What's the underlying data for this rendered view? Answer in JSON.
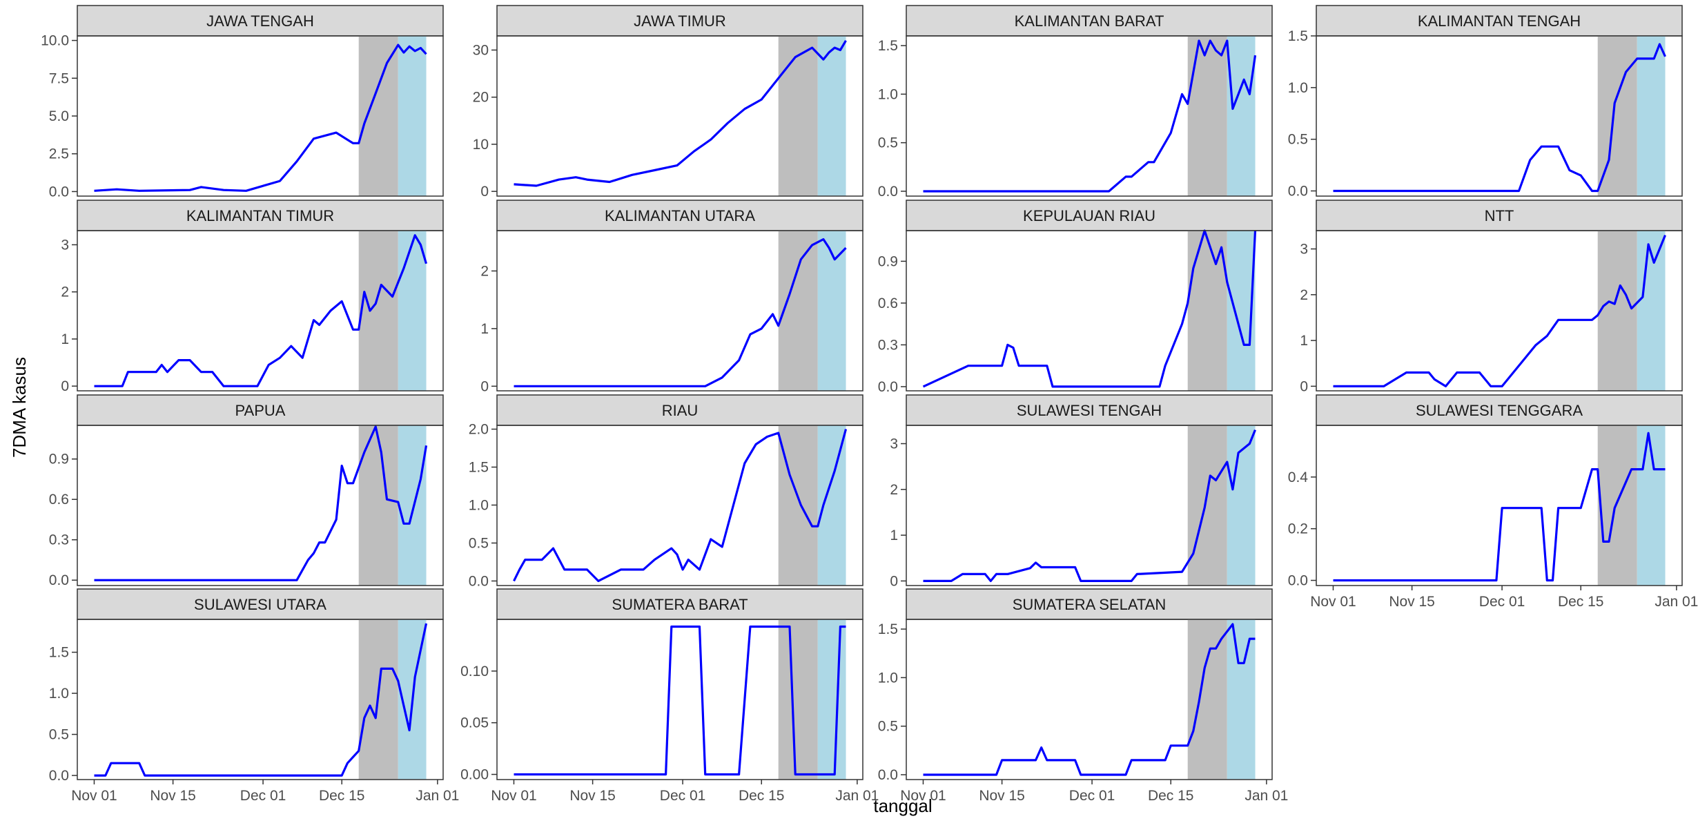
{
  "chart_data": {
    "type": "line",
    "layout": "facet-grid 4 columns x 4 rows, free y scales, shared x axis",
    "xlabel": "tanggal",
    "ylabel": "7DMA kasus",
    "x_tick_labels": [
      "Nov 01",
      "Nov 15",
      "Dec 01",
      "Dec 15",
      "Jan 01"
    ],
    "x_tick_dates": [
      "2020-11-01",
      "2020-11-15",
      "2020-12-01",
      "2020-12-15",
      "2021-01-01"
    ],
    "x_range": [
      "2020-10-29",
      "2021-01-02"
    ],
    "shaded_periods": [
      {
        "fill": "#bebebe",
        "start": "2020-12-18",
        "end": "2020-12-25"
      },
      {
        "fill": "#add8e6",
        "start": "2020-12-25",
        "end": "2020-12-30"
      }
    ],
    "line_color": "#0000ff",
    "strip_fill": "#d9d9d9",
    "grid": false,
    "panels": [
      {
        "title": "JAWA TENGAH",
        "ylim": [
          -0.3,
          10.3
        ],
        "yticks": [
          0,
          2.5,
          5,
          7.5,
          10
        ],
        "ytick_labels": [
          "0.0",
          "2.5",
          "5.0",
          "7.5",
          "10.0"
        ],
        "x": [
          "2020-11-01",
          "2020-11-05",
          "2020-11-09",
          "2020-11-18",
          "2020-11-20",
          "2020-11-24",
          "2020-11-28",
          "2020-12-04",
          "2020-12-07",
          "2020-12-10",
          "2020-12-14",
          "2020-12-17",
          "2020-12-18",
          "2020-12-19",
          "2020-12-21",
          "2020-12-23",
          "2020-12-25",
          "2020-12-26",
          "2020-12-27",
          "2020-12-28",
          "2020-12-29",
          "2020-12-30"
        ],
        "y": [
          0.05,
          0.15,
          0.05,
          0.1,
          0.3,
          0.1,
          0.05,
          0.7,
          2.0,
          3.5,
          3.9,
          3.2,
          3.2,
          4.5,
          6.5,
          8.5,
          9.7,
          9.2,
          9.6,
          9.3,
          9.5,
          9.1
        ]
      },
      {
        "title": "JAWA TIMUR",
        "ylim": [
          -1,
          33
        ],
        "yticks": [
          0,
          10,
          20,
          30
        ],
        "ytick_labels": [
          "0",
          "10",
          "20",
          "30"
        ],
        "x": [
          "2020-11-01",
          "2020-11-05",
          "2020-11-09",
          "2020-11-12",
          "2020-11-14",
          "2020-11-18",
          "2020-11-22",
          "2020-11-26",
          "2020-11-30",
          "2020-12-03",
          "2020-12-06",
          "2020-12-09",
          "2020-12-12",
          "2020-12-15",
          "2020-12-18",
          "2020-12-21",
          "2020-12-24",
          "2020-12-26",
          "2020-12-27",
          "2020-12-28",
          "2020-12-29",
          "2020-12-30"
        ],
        "y": [
          1.5,
          1.2,
          2.5,
          3.0,
          2.5,
          2.0,
          3.5,
          4.5,
          5.5,
          8.5,
          11.0,
          14.5,
          17.5,
          19.5,
          24.0,
          28.5,
          30.5,
          28.0,
          29.5,
          30.5,
          30.0,
          32.0
        ]
      },
      {
        "title": "KALIMANTAN BARAT",
        "ylim": [
          -0.05,
          1.6
        ],
        "yticks": [
          0,
          0.5,
          1,
          1.5
        ],
        "ytick_labels": [
          "0.0",
          "0.5",
          "1.0",
          "1.5"
        ],
        "x": [
          "2020-11-01",
          "2020-12-04",
          "2020-12-07",
          "2020-12-08",
          "2020-12-11",
          "2020-12-12",
          "2020-12-15",
          "2020-12-17",
          "2020-12-18",
          "2020-12-20",
          "2020-12-21",
          "2020-12-22",
          "2020-12-23",
          "2020-12-24",
          "2020-12-25",
          "2020-12-26",
          "2020-12-27",
          "2020-12-28",
          "2020-12-29",
          "2020-12-30"
        ],
        "y": [
          0,
          0,
          0.15,
          0.15,
          0.3,
          0.3,
          0.6,
          1.0,
          0.9,
          1.55,
          1.4,
          1.55,
          1.45,
          1.4,
          1.55,
          0.85,
          1.0,
          1.15,
          1.0,
          1.4
        ]
      },
      {
        "title": "KALIMANTAN TENGAH",
        "ylim": [
          -0.05,
          1.5
        ],
        "yticks": [
          0,
          0.5,
          1,
          1.5
        ],
        "ytick_labels": [
          "0.0",
          "0.5",
          "1.0",
          "1.5"
        ],
        "x": [
          "2020-11-01",
          "2020-12-04",
          "2020-12-06",
          "2020-12-08",
          "2020-12-11",
          "2020-12-13",
          "2020-12-15",
          "2020-12-17",
          "2020-12-18",
          "2020-12-20",
          "2020-12-21",
          "2020-12-23",
          "2020-12-25",
          "2020-12-27",
          "2020-12-28",
          "2020-12-29",
          "2020-12-30"
        ],
        "y": [
          0,
          0,
          0.3,
          0.43,
          0.43,
          0.2,
          0.15,
          0,
          0,
          0.3,
          0.85,
          1.15,
          1.28,
          1.28,
          1.28,
          1.42,
          1.3
        ]
      },
      {
        "title": "KALIMANTAN TIMUR",
        "ylim": [
          -0.1,
          3.3
        ],
        "yticks": [
          0,
          1,
          2,
          3
        ],
        "ytick_labels": [
          "0",
          "1",
          "2",
          "3"
        ],
        "x": [
          "2020-11-01",
          "2020-11-06",
          "2020-11-07",
          "2020-11-12",
          "2020-11-13",
          "2020-11-14",
          "2020-11-16",
          "2020-11-18",
          "2020-11-20",
          "2020-11-22",
          "2020-11-24",
          "2020-11-30",
          "2020-12-02",
          "2020-12-04",
          "2020-12-06",
          "2020-12-08",
          "2020-12-10",
          "2020-12-11",
          "2020-12-13",
          "2020-12-15",
          "2020-12-17",
          "2020-12-18",
          "2020-12-19",
          "2020-12-20",
          "2020-12-21",
          "2020-12-22",
          "2020-12-24",
          "2020-12-26",
          "2020-12-28",
          "2020-12-29",
          "2020-12-30"
        ],
        "y": [
          0,
          0,
          0.3,
          0.3,
          0.45,
          0.3,
          0.55,
          0.55,
          0.3,
          0.3,
          0,
          0,
          0.45,
          0.6,
          0.85,
          0.6,
          1.4,
          1.3,
          1.6,
          1.8,
          1.2,
          1.2,
          2.0,
          1.6,
          1.75,
          2.15,
          1.9,
          2.5,
          3.2,
          3.0,
          2.6
        ]
      },
      {
        "title": "KALIMANTAN UTARA",
        "ylim": [
          -0.08,
          2.7
        ],
        "yticks": [
          0,
          1,
          2
        ],
        "ytick_labels": [
          "0",
          "1",
          "2"
        ],
        "x": [
          "2020-11-01",
          "2020-12-05",
          "2020-12-08",
          "2020-12-11",
          "2020-12-13",
          "2020-12-15",
          "2020-12-17",
          "2020-12-18",
          "2020-12-20",
          "2020-12-22",
          "2020-12-24",
          "2020-12-26",
          "2020-12-27",
          "2020-12-28",
          "2020-12-29",
          "2020-12-30"
        ],
        "y": [
          0,
          0,
          0.15,
          0.45,
          0.9,
          1.0,
          1.25,
          1.05,
          1.6,
          2.2,
          2.45,
          2.55,
          2.4,
          2.2,
          2.3,
          2.4
        ]
      },
      {
        "title": "KEPULAUAN RIAU",
        "ylim": [
          -0.03,
          1.12
        ],
        "yticks": [
          0,
          0.3,
          0.6,
          0.9
        ],
        "ytick_labels": [
          "0.0",
          "0.3",
          "0.6",
          "0.9"
        ],
        "x": [
          "2020-11-01",
          "2020-11-09",
          "2020-11-15",
          "2020-11-16",
          "2020-11-17",
          "2020-11-18",
          "2020-11-23",
          "2020-11-24",
          "2020-12-13",
          "2020-12-14",
          "2020-12-17",
          "2020-12-18",
          "2020-12-19",
          "2020-12-21",
          "2020-12-23",
          "2020-12-24",
          "2020-12-25",
          "2020-12-27",
          "2020-12-28",
          "2020-12-29",
          "2020-12-30"
        ],
        "y": [
          0,
          0.15,
          0.15,
          0.3,
          0.28,
          0.15,
          0.15,
          0,
          0,
          0.15,
          0.45,
          0.6,
          0.85,
          1.12,
          0.88,
          1.0,
          0.75,
          0.45,
          0.3,
          0.3,
          1.12
        ]
      },
      {
        "title": "NTT",
        "ylim": [
          -0.1,
          3.4
        ],
        "yticks": [
          0,
          1,
          2,
          3
        ],
        "ytick_labels": [
          "0",
          "1",
          "2",
          "3"
        ],
        "x": [
          "2020-11-01",
          "2020-11-10",
          "2020-11-12",
          "2020-11-14",
          "2020-11-18",
          "2020-11-19",
          "2020-11-21",
          "2020-11-23",
          "2020-11-27",
          "2020-11-29",
          "2020-12-01",
          "2020-12-03",
          "2020-12-05",
          "2020-12-07",
          "2020-12-09",
          "2020-12-11",
          "2020-12-14",
          "2020-12-15",
          "2020-12-17",
          "2020-12-18",
          "2020-12-19",
          "2020-12-20",
          "2020-12-21",
          "2020-12-22",
          "2020-12-23",
          "2020-12-24",
          "2020-12-26",
          "2020-12-27",
          "2020-12-28",
          "2020-12-29",
          "2020-12-30"
        ],
        "y": [
          0,
          0,
          0.15,
          0.3,
          0.3,
          0.15,
          0,
          0.3,
          0.3,
          0,
          0,
          0.3,
          0.6,
          0.9,
          1.1,
          1.45,
          1.45,
          1.45,
          1.45,
          1.55,
          1.75,
          1.85,
          1.8,
          2.2,
          2.0,
          1.7,
          1.95,
          3.1,
          2.7,
          3.0,
          3.3
        ]
      },
      {
        "title": "PAPUA",
        "ylim": [
          -0.04,
          1.15
        ],
        "yticks": [
          0,
          0.3,
          0.6,
          0.9
        ],
        "ytick_labels": [
          "0.0",
          "0.3",
          "0.6",
          "0.9"
        ],
        "x": [
          "2020-11-01",
          "2020-12-07",
          "2020-12-09",
          "2020-12-10",
          "2020-12-11",
          "2020-12-12",
          "2020-12-14",
          "2020-12-15",
          "2020-12-16",
          "2020-12-17",
          "2020-12-19",
          "2020-12-21",
          "2020-12-22",
          "2020-12-23",
          "2020-12-25",
          "2020-12-26",
          "2020-12-27",
          "2020-12-29",
          "2020-12-30"
        ],
        "y": [
          0,
          0,
          0.15,
          0.2,
          0.28,
          0.28,
          0.45,
          0.85,
          0.72,
          0.72,
          0.95,
          1.14,
          0.95,
          0.6,
          0.58,
          0.42,
          0.42,
          0.75,
          1.0
        ]
      },
      {
        "title": "RIAU",
        "ylim": [
          -0.06,
          2.05
        ],
        "yticks": [
          0,
          0.5,
          1,
          1.5,
          2
        ],
        "ytick_labels": [
          "0.0",
          "0.5",
          "1.0",
          "1.5",
          "2.0"
        ],
        "x": [
          "2020-11-01",
          "2020-11-02",
          "2020-11-03",
          "2020-11-06",
          "2020-11-08",
          "2020-11-10",
          "2020-11-14",
          "2020-11-16",
          "2020-11-20",
          "2020-11-24",
          "2020-11-26",
          "2020-11-29",
          "2020-11-30",
          "2020-12-01",
          "2020-12-02",
          "2020-12-04",
          "2020-12-06",
          "2020-12-08",
          "2020-12-10",
          "2020-12-12",
          "2020-12-14",
          "2020-12-16",
          "2020-12-18",
          "2020-12-20",
          "2020-12-22",
          "2020-12-24",
          "2020-12-25",
          "2020-12-26",
          "2020-12-28",
          "2020-12-30"
        ],
        "y": [
          0,
          0.15,
          0.28,
          0.28,
          0.43,
          0.15,
          0.15,
          0.0,
          0.15,
          0.15,
          0.28,
          0.43,
          0.35,
          0.15,
          0.28,
          0.15,
          0.55,
          0.45,
          1.0,
          1.55,
          1.8,
          1.9,
          1.95,
          1.4,
          1.0,
          0.72,
          0.72,
          1.0,
          1.45,
          2.0
        ]
      },
      {
        "title": "SULAWESI TENGAH",
        "ylim": [
          -0.1,
          3.4
        ],
        "yticks": [
          0,
          1,
          2,
          3
        ],
        "ytick_labels": [
          "0",
          "1",
          "2",
          "3"
        ],
        "x": [
          "2020-11-01",
          "2020-11-06",
          "2020-11-08",
          "2020-11-12",
          "2020-11-13",
          "2020-11-14",
          "2020-11-16",
          "2020-11-20",
          "2020-11-21",
          "2020-11-22",
          "2020-11-28",
          "2020-11-29",
          "2020-12-08",
          "2020-12-09",
          "2020-12-17",
          "2020-12-19",
          "2020-12-21",
          "2020-12-22",
          "2020-12-23",
          "2020-12-25",
          "2020-12-26",
          "2020-12-27",
          "2020-12-29",
          "2020-12-30"
        ],
        "y": [
          0,
          0,
          0.15,
          0.15,
          0.0,
          0.15,
          0.15,
          0.28,
          0.4,
          0.3,
          0.3,
          0.0,
          0.0,
          0.15,
          0.2,
          0.6,
          1.6,
          2.3,
          2.2,
          2.6,
          2.0,
          2.8,
          3.0,
          3.3
        ]
      },
      {
        "title": "SULAWESI TENGGARA",
        "ylim": [
          -0.02,
          0.6
        ],
        "yticks": [
          0,
          0.2,
          0.4
        ],
        "ytick_labels": [
          "0.0",
          "0.2",
          "0.4"
        ],
        "x": [
          "2020-11-01",
          "2020-11-30",
          "2020-12-01",
          "2020-12-08",
          "2020-12-09",
          "2020-12-10",
          "2020-12-11",
          "2020-12-15",
          "2020-12-17",
          "2020-12-18",
          "2020-12-19",
          "2020-12-20",
          "2020-12-21",
          "2020-12-24",
          "2020-12-26",
          "2020-12-27",
          "2020-12-28",
          "2020-12-30"
        ],
        "y": [
          0,
          0,
          0.28,
          0.28,
          0,
          0,
          0.28,
          0.28,
          0.43,
          0.43,
          0.15,
          0.15,
          0.28,
          0.43,
          0.43,
          0.57,
          0.43,
          0.43
        ]
      },
      {
        "title": "SULAWESI UTARA",
        "ylim": [
          -0.05,
          1.9
        ],
        "yticks": [
          0,
          0.5,
          1,
          1.5
        ],
        "ytick_labels": [
          "0.0",
          "0.5",
          "1.0",
          "1.5"
        ],
        "x": [
          "2020-11-01",
          "2020-11-03",
          "2020-11-04",
          "2020-11-09",
          "2020-11-10",
          "2020-12-15",
          "2020-12-16",
          "2020-12-18",
          "2020-12-19",
          "2020-12-20",
          "2020-12-21",
          "2020-12-22",
          "2020-12-24",
          "2020-12-25",
          "2020-12-26",
          "2020-12-27",
          "2020-12-28",
          "2020-12-30"
        ],
        "y": [
          0,
          0,
          0.15,
          0.15,
          0,
          0,
          0.15,
          0.3,
          0.7,
          0.85,
          0.7,
          1.3,
          1.3,
          1.15,
          0.85,
          0.55,
          1.2,
          1.85
        ]
      },
      {
        "title": "SUMATERA BARAT",
        "ylim": [
          -0.005,
          0.15
        ],
        "yticks": [
          0,
          0.05,
          0.1
        ],
        "ytick_labels": [
          "0.00",
          "0.05",
          "0.10"
        ],
        "x": [
          "2020-11-01",
          "2020-11-28",
          "2020-11-29",
          "2020-12-04",
          "2020-12-05",
          "2020-12-11",
          "2020-12-13",
          "2020-12-20",
          "2020-12-21",
          "2020-12-28",
          "2020-12-29",
          "2020-12-30"
        ],
        "y": [
          0,
          0,
          0.143,
          0.143,
          0,
          0,
          0.143,
          0.143,
          0,
          0,
          0.143,
          0.143
        ]
      },
      {
        "title": "SUMATERA SELATAN",
        "ylim": [
          -0.05,
          1.6
        ],
        "yticks": [
          0,
          0.5,
          1,
          1.5
        ],
        "ytick_labels": [
          "0.0",
          "0.5",
          "1.0",
          "1.5"
        ],
        "x": [
          "2020-11-01",
          "2020-11-14",
          "2020-11-15",
          "2020-11-21",
          "2020-11-22",
          "2020-11-23",
          "2020-11-28",
          "2020-11-29",
          "2020-12-07",
          "2020-12-08",
          "2020-12-14",
          "2020-12-15",
          "2020-12-18",
          "2020-12-19",
          "2020-12-20",
          "2020-12-21",
          "2020-12-22",
          "2020-12-23",
          "2020-12-24",
          "2020-12-26",
          "2020-12-27",
          "2020-12-28",
          "2020-12-29",
          "2020-12-30"
        ],
        "y": [
          0,
          0,
          0.15,
          0.15,
          0.28,
          0.15,
          0.15,
          0.0,
          0.0,
          0.15,
          0.15,
          0.3,
          0.3,
          0.45,
          0.75,
          1.1,
          1.3,
          1.3,
          1.4,
          1.55,
          1.15,
          1.15,
          1.4,
          1.4
        ]
      }
    ]
  }
}
